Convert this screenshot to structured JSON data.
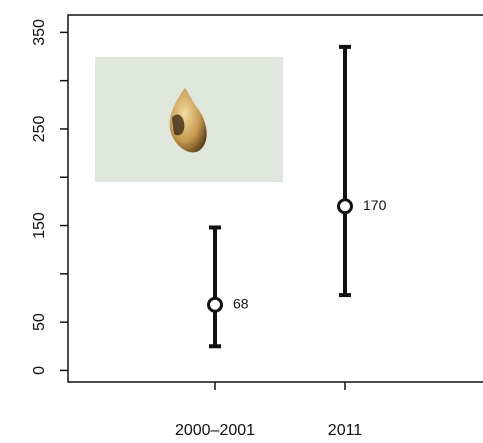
{
  "chart_data": {
    "type": "errorbar",
    "categories": [
      "2000–2001",
      "2011"
    ],
    "values": [
      68,
      170
    ],
    "lower": [
      25,
      78
    ],
    "upper": [
      148,
      335
    ],
    "value_labels": [
      "68",
      "170"
    ],
    "color": "#111111",
    "ylim": [
      -12,
      368
    ],
    "yticks": [
      0,
      50,
      150,
      250,
      350
    ],
    "yminor_ticks": [
      100,
      200,
      300
    ]
  }
}
